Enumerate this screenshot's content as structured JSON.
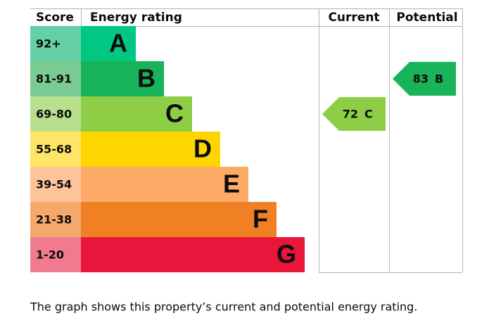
{
  "headers": {
    "score": "Score",
    "rating": "Energy rating",
    "current": "Current",
    "potential": "Potential"
  },
  "bands": [
    {
      "score": "92+",
      "letter": "A",
      "color": "#00c781",
      "score_color": "#64d0a7"
    },
    {
      "score": "81-91",
      "letter": "B",
      "color": "#19b459",
      "score_color": "#79ca93"
    },
    {
      "score": "69-80",
      "letter": "C",
      "color": "#8dce46",
      "score_color": "#b8e08c"
    },
    {
      "score": "55-68",
      "letter": "D",
      "color": "#ffd500",
      "score_color": "#ffe566"
    },
    {
      "score": "39-54",
      "letter": "E",
      "color": "#fcaa65",
      "score_color": "#fdc49a"
    },
    {
      "score": "21-38",
      "letter": "F",
      "color": "#ef8023",
      "score_color": "#f4a86b"
    },
    {
      "score": "1-20",
      "letter": "G",
      "color": "#e9153b",
      "score_color": "#f27a8f"
    }
  ],
  "current": {
    "score": 72,
    "rating": "C"
  },
  "potential": {
    "score": 83,
    "rating": "B"
  },
  "caption": "The graph shows this property’s current and potential energy rating."
}
